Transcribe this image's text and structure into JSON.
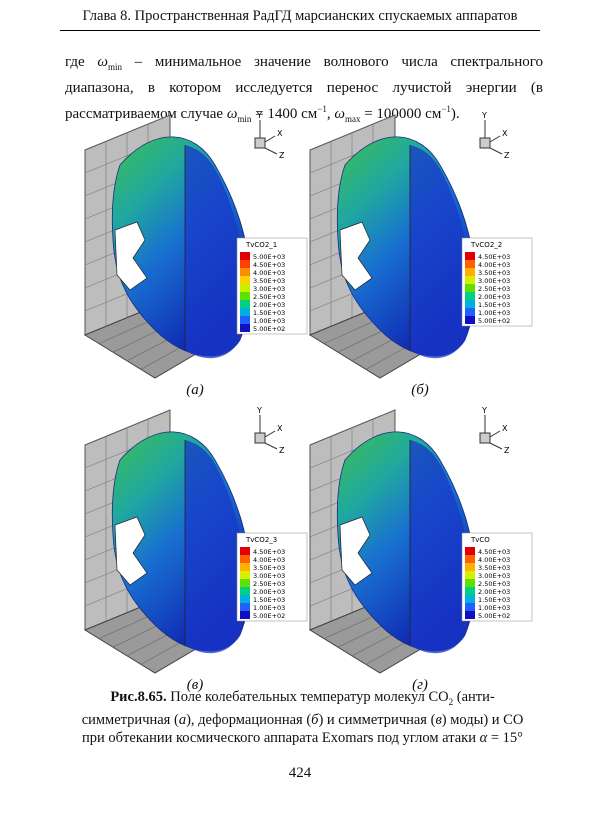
{
  "header": {
    "title": "Глава 8. Пространственная РадГД марсианских спускаемых аппаратов"
  },
  "paragraph": [
    "где ",
    "ω",
    "min",
    " – минимальное значение волнового числа спектрального диапазона, в котором исследуется перенос лучистой энергии (в рассматриваемом случае ",
    "ω",
    "min",
    " = 1400 см",
    "−1",
    ", ",
    "ω",
    "max",
    " = 100000 см",
    "−1",
    ")."
  ],
  "panels": [
    {
      "label": "(а)",
      "axes": [
        "Y",
        "X",
        "Z"
      ],
      "legend_title": "TvCO2_1",
      "levels": [
        "5.00E+03",
        "4.50E+03",
        "4.00E+03",
        "3.50E+03",
        "3.00E+03",
        "2.50E+03",
        "2.00E+03",
        "1.50E+03",
        "1.00E+03",
        "5.00E+02"
      ]
    },
    {
      "label": "(б)",
      "axes": [
        "Y",
        "X",
        "Z"
      ],
      "legend_title": "TvCO2_2",
      "levels": [
        "4.50E+03",
        "4.00E+03",
        "3.50E+03",
        "3.00E+03",
        "2.50E+03",
        "2.00E+03",
        "1.50E+03",
        "1.00E+03",
        "5.00E+02"
      ]
    },
    {
      "label": "(в)",
      "axes": [
        "Y",
        "X",
        "Z"
      ],
      "legend_title": "TvCO2_3",
      "levels": [
        "4.50E+03",
        "4.00E+03",
        "3.50E+03",
        "3.00E+03",
        "2.50E+03",
        "2.00E+03",
        "1.50E+03",
        "1.00E+03",
        "5.00E+02"
      ]
    },
    {
      "label": "(г)",
      "axes": [
        "Y",
        "X",
        "Z"
      ],
      "legend_title": "TvCO",
      "levels": [
        "4.50E+03",
        "4.00E+03",
        "3.50E+03",
        "3.00E+03",
        "2.50E+03",
        "2.00E+03",
        "1.50E+03",
        "1.00E+03",
        "5.00E+02"
      ]
    }
  ],
  "caption": [
    "Рис.8.65.",
    " Поле колебательных температур молекул CO",
    "2",
    " (анти-симметричная (",
    "а",
    "), деформационная (",
    "б",
    ") и симметричная (",
    "в",
    ") моды) и CO при обтекании космического аппарата Exomars под углом атаки ",
    "α",
    " = 15°"
  ],
  "page_number": "424"
}
